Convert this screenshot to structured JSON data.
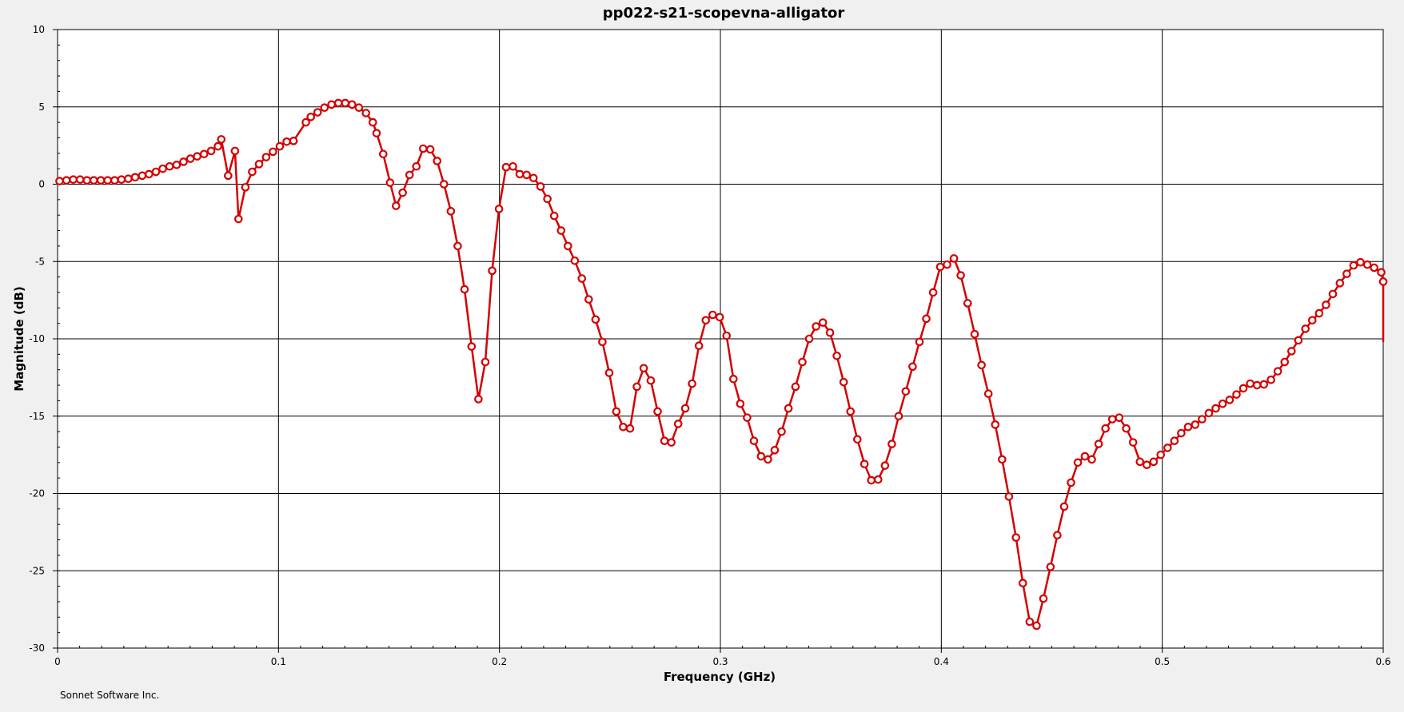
{
  "chart_data": {
    "type": "line",
    "title": "pp022-s21-scopevna-alligator",
    "xlabel": "Frequency (GHz)",
    "ylabel": "Magnitude (dB)",
    "xlim": [
      0,
      0.6
    ],
    "ylim": [
      -30,
      10
    ],
    "x_ticks": [
      "0",
      "0.1",
      "0.2",
      "0.3",
      "0.4",
      "0.5",
      "0.6"
    ],
    "y_ticks": [
      "10",
      "5",
      "0",
      "-5",
      "-10",
      "-15",
      "-20",
      "-25",
      "-30"
    ],
    "grid": true,
    "marker": "open-circle",
    "line_color": "#d40000",
    "points": [
      [
        0.0009,
        0.2
      ],
      [
        0.004,
        0.25
      ],
      [
        0.0071,
        0.3
      ],
      [
        0.0102,
        0.3
      ],
      [
        0.0133,
        0.25
      ],
      [
        0.0164,
        0.25
      ],
      [
        0.0196,
        0.25
      ],
      [
        0.0227,
        0.25
      ],
      [
        0.0258,
        0.25
      ],
      [
        0.0289,
        0.3
      ],
      [
        0.032,
        0.35
      ],
      [
        0.0351,
        0.45
      ],
      [
        0.0383,
        0.55
      ],
      [
        0.0414,
        0.65
      ],
      [
        0.0445,
        0.8
      ],
      [
        0.0476,
        1.0
      ],
      [
        0.0507,
        1.15
      ],
      [
        0.0539,
        1.25
      ],
      [
        0.057,
        1.45
      ],
      [
        0.0601,
        1.65
      ],
      [
        0.0632,
        1.8
      ],
      [
        0.0663,
        1.95
      ],
      [
        0.0695,
        2.15
      ],
      [
        0.0726,
        2.45
      ],
      [
        0.0741,
        2.9
      ],
      [
        0.0772,
        0.55
      ],
      [
        0.0803,
        2.15
      ],
      [
        0.0819,
        -2.25
      ],
      [
        0.085,
        -0.2
      ],
      [
        0.0881,
        0.8
      ],
      [
        0.0912,
        1.3
      ],
      [
        0.0944,
        1.75
      ],
      [
        0.0975,
        2.1
      ],
      [
        0.1006,
        2.45
      ],
      [
        0.1037,
        2.75
      ],
      [
        0.1068,
        2.8
      ],
      [
        0.1124,
        4.0
      ],
      [
        0.1146,
        4.35
      ],
      [
        0.1177,
        4.65
      ],
      [
        0.1208,
        4.95
      ],
      [
        0.124,
        5.15
      ],
      [
        0.1271,
        5.25
      ],
      [
        0.1302,
        5.25
      ],
      [
        0.1333,
        5.15
      ],
      [
        0.1364,
        4.95
      ],
      [
        0.1396,
        4.6
      ],
      [
        0.1427,
        4.0
      ],
      [
        0.1444,
        3.3
      ],
      [
        0.1474,
        1.95
      ],
      [
        0.1505,
        0.1
      ],
      [
        0.1532,
        -1.4
      ],
      [
        0.1562,
        -0.55
      ],
      [
        0.1593,
        0.6
      ],
      [
        0.1624,
        1.15
      ],
      [
        0.1655,
        2.3
      ],
      [
        0.1687,
        2.25
      ],
      [
        0.1718,
        1.5
      ],
      [
        0.1749,
        0.0
      ],
      [
        0.178,
        -1.75
      ],
      [
        0.1811,
        -4.0
      ],
      [
        0.1842,
        -6.8
      ],
      [
        0.1874,
        -10.5
      ],
      [
        0.1905,
        -13.9
      ],
      [
        0.1936,
        -11.5
      ],
      [
        0.1967,
        -5.6
      ],
      [
        0.1998,
        -1.6
      ],
      [
        0.203,
        1.1
      ],
      [
        0.2061,
        1.15
      ],
      [
        0.2092,
        0.65
      ],
      [
        0.2123,
        0.6
      ],
      [
        0.2154,
        0.4
      ],
      [
        0.2186,
        -0.15
      ],
      [
        0.2217,
        -0.95
      ],
      [
        0.2248,
        -2.05
      ],
      [
        0.2279,
        -3.0
      ],
      [
        0.231,
        -4.0
      ],
      [
        0.2341,
        -4.95
      ],
      [
        0.2373,
        -6.1
      ],
      [
        0.2404,
        -7.45
      ],
      [
        0.2435,
        -8.75
      ],
      [
        0.2466,
        -10.2
      ],
      [
        0.2497,
        -12.2
      ],
      [
        0.2529,
        -14.7
      ],
      [
        0.256,
        -15.7
      ],
      [
        0.2591,
        -15.8
      ],
      [
        0.2622,
        -13.1
      ],
      [
        0.2653,
        -11.9
      ],
      [
        0.2685,
        -12.7
      ],
      [
        0.2716,
        -14.7
      ],
      [
        0.2747,
        -16.6
      ],
      [
        0.2778,
        -16.7
      ],
      [
        0.2809,
        -15.5
      ],
      [
        0.2841,
        -14.5
      ],
      [
        0.2872,
        -12.9
      ],
      [
        0.2903,
        -10.45
      ],
      [
        0.2934,
        -8.8
      ],
      [
        0.2965,
        -8.45
      ],
      [
        0.2997,
        -8.6
      ],
      [
        0.3028,
        -9.8
      ],
      [
        0.3059,
        -12.6
      ],
      [
        0.309,
        -14.2
      ],
      [
        0.3121,
        -15.1
      ],
      [
        0.3152,
        -16.6
      ],
      [
        0.3184,
        -17.6
      ],
      [
        0.3215,
        -17.8
      ],
      [
        0.3246,
        -17.2
      ],
      [
        0.3277,
        -16.0
      ],
      [
        0.3308,
        -14.5
      ],
      [
        0.334,
        -13.1
      ],
      [
        0.3371,
        -11.5
      ],
      [
        0.3402,
        -10.0
      ],
      [
        0.3433,
        -9.2
      ],
      [
        0.3464,
        -8.95
      ],
      [
        0.3496,
        -9.6
      ],
      [
        0.3527,
        -11.1
      ],
      [
        0.3558,
        -12.8
      ],
      [
        0.3589,
        -14.7
      ],
      [
        0.362,
        -16.5
      ],
      [
        0.3652,
        -18.1
      ],
      [
        0.3683,
        -19.15
      ],
      [
        0.3714,
        -19.1
      ],
      [
        0.3745,
        -18.2
      ],
      [
        0.3776,
        -16.8
      ],
      [
        0.3807,
        -15.0
      ],
      [
        0.3839,
        -13.4
      ],
      [
        0.387,
        -11.8
      ],
      [
        0.3901,
        -10.2
      ],
      [
        0.3932,
        -8.7
      ],
      [
        0.3963,
        -7.0
      ],
      [
        0.3995,
        -5.35
      ],
      [
        0.4026,
        -5.2
      ],
      [
        0.4057,
        -4.8
      ],
      [
        0.4088,
        -5.9
      ],
      [
        0.4119,
        -7.7
      ],
      [
        0.4151,
        -9.7
      ],
      [
        0.4182,
        -11.7
      ],
      [
        0.4213,
        -13.55
      ],
      [
        0.4244,
        -15.55
      ],
      [
        0.4275,
        -17.8
      ],
      [
        0.4306,
        -20.2
      ],
      [
        0.4338,
        -22.85
      ],
      [
        0.4369,
        -25.8
      ],
      [
        0.44,
        -28.3
      ],
      [
        0.4431,
        -28.55
      ],
      [
        0.4462,
        -26.8
      ],
      [
        0.4494,
        -24.75
      ],
      [
        0.4525,
        -22.7
      ],
      [
        0.4556,
        -20.85
      ],
      [
        0.4587,
        -19.3
      ],
      [
        0.4618,
        -18.0
      ],
      [
        0.465,
        -17.6
      ],
      [
        0.4681,
        -17.8
      ],
      [
        0.4712,
        -16.8
      ],
      [
        0.4743,
        -15.8
      ],
      [
        0.4774,
        -15.2
      ],
      [
        0.4805,
        -15.1
      ],
      [
        0.4837,
        -15.8
      ],
      [
        0.4868,
        -16.7
      ],
      [
        0.4899,
        -17.95
      ],
      [
        0.493,
        -18.15
      ],
      [
        0.4961,
        -17.95
      ],
      [
        0.4993,
        -17.5
      ],
      [
        0.5024,
        -17.05
      ],
      [
        0.5055,
        -16.6
      ],
      [
        0.5086,
        -16.1
      ],
      [
        0.5117,
        -15.7
      ],
      [
        0.5149,
        -15.55
      ],
      [
        0.518,
        -15.2
      ],
      [
        0.5211,
        -14.8
      ],
      [
        0.5242,
        -14.5
      ],
      [
        0.5273,
        -14.2
      ],
      [
        0.5305,
        -13.95
      ],
      [
        0.5336,
        -13.6
      ],
      [
        0.5367,
        -13.2
      ],
      [
        0.5398,
        -12.9
      ],
      [
        0.5429,
        -13.0
      ],
      [
        0.546,
        -12.95
      ],
      [
        0.5492,
        -12.65
      ],
      [
        0.5523,
        -12.1
      ],
      [
        0.5554,
        -11.5
      ],
      [
        0.5585,
        -10.8
      ],
      [
        0.5616,
        -10.1
      ],
      [
        0.5648,
        -9.35
      ],
      [
        0.5679,
        -8.8
      ],
      [
        0.571,
        -8.35
      ],
      [
        0.5741,
        -7.8
      ],
      [
        0.5772,
        -7.1
      ],
      [
        0.5804,
        -6.4
      ],
      [
        0.5835,
        -5.8
      ],
      [
        0.5866,
        -5.25
      ],
      [
        0.5897,
        -5.05
      ],
      [
        0.5928,
        -5.2
      ],
      [
        0.5959,
        -5.4
      ],
      [
        0.5991,
        -5.7
      ],
      [
        0.6022,
        -6.3
      ],
      [
        0.6053,
        -7.1
      ],
      [
        0.6084,
        -7.9
      ],
      [
        0.6115,
        -9.0
      ],
      [
        0.6146,
        -10.2
      ],
      [
        0.6178,
        -10.2
      ]
    ]
  },
  "footer": {
    "text": "Sonnet Software Inc."
  }
}
